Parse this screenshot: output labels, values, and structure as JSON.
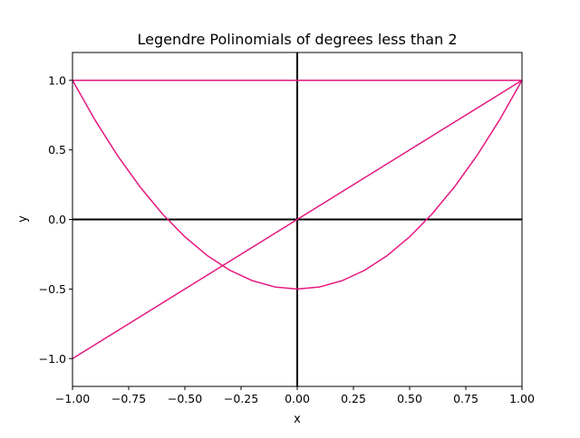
{
  "chart_data": {
    "type": "line",
    "title": "Legendre Polinomials of degrees less than 2",
    "xlabel": "x",
    "ylabel": "y",
    "xlim": [
      -1.0,
      1.0
    ],
    "ylim": [
      -1.2,
      1.2
    ],
    "grid": false,
    "legend": "none",
    "x_ticks": [
      "−1.00",
      "−0.75",
      "−0.50",
      "−0.25",
      "0.00",
      "0.25",
      "0.50",
      "0.75",
      "1.00"
    ],
    "x_tick_values": [
      -1.0,
      -0.75,
      -0.5,
      -0.25,
      0.0,
      0.25,
      0.5,
      0.75,
      1.0
    ],
    "y_ticks": [
      "−1.0",
      "−0.5",
      "0.0",
      "0.5",
      "1.0"
    ],
    "y_tick_values": [
      -1.0,
      -0.5,
      0.0,
      0.5,
      1.0
    ],
    "zero_lines_color": "#000000",
    "series": [
      {
        "color": "#e6177f",
        "x": [
          -1.0,
          1.0
        ],
        "y": [
          1.0,
          1.0
        ]
      },
      {
        "color": "#e6177f",
        "x": [
          -1.0,
          1.0
        ],
        "y": [
          -1.0,
          1.0
        ]
      },
      {
        "color": "#e6177f",
        "x": [
          -1.0,
          -0.9,
          -0.8,
          -0.7,
          -0.6,
          -0.5,
          -0.4,
          -0.3,
          -0.2,
          -0.1,
          0.0,
          0.1,
          0.2,
          0.3,
          0.4,
          0.5,
          0.6,
          0.7,
          0.8,
          0.9,
          1.0
        ],
        "y": [
          1.0,
          0.715,
          0.46,
          0.235,
          0.04,
          -0.125,
          -0.26,
          -0.365,
          -0.44,
          -0.485,
          -0.5,
          -0.485,
          -0.44,
          -0.365,
          -0.26,
          -0.125,
          0.04,
          0.235,
          0.46,
          0.715,
          1.0
        ]
      }
    ]
  }
}
